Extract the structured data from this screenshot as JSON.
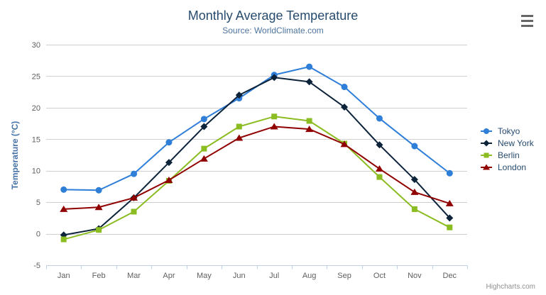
{
  "chart_data": {
    "type": "line",
    "title": "Monthly Average Temperature",
    "subtitle": "Source: WorldClimate.com",
    "categories": [
      "Jan",
      "Feb",
      "Mar",
      "Apr",
      "May",
      "Jun",
      "Jul",
      "Aug",
      "Sep",
      "Oct",
      "Nov",
      "Dec"
    ],
    "xlabel": "",
    "ylabel": "Temperature (°C)",
    "ylim": [
      -5,
      30
    ],
    "yticks": [
      -5,
      0,
      5,
      10,
      15,
      20,
      25,
      30
    ],
    "grid": true,
    "legend_position": "right-middle",
    "series": [
      {
        "name": "Tokyo",
        "color": "#2f7ed8",
        "marker": "circle",
        "values": [
          7.0,
          6.9,
          9.5,
          14.5,
          18.2,
          21.5,
          25.2,
          26.5,
          23.3,
          18.3,
          13.9,
          9.6
        ]
      },
      {
        "name": "New York",
        "color": "#0d233a",
        "marker": "diamond",
        "values": [
          -0.2,
          0.8,
          5.7,
          11.3,
          17.0,
          22.0,
          24.8,
          24.1,
          20.1,
          14.1,
          8.6,
          2.5
        ]
      },
      {
        "name": "Berlin",
        "color": "#8bbc21",
        "marker": "square",
        "values": [
          -0.9,
          0.6,
          3.5,
          8.4,
          13.5,
          17.0,
          18.6,
          17.9,
          14.3,
          9.0,
          3.9,
          1.0
        ]
      },
      {
        "name": "London",
        "color": "#910000",
        "marker": "triangle",
        "values": [
          3.9,
          4.2,
          5.7,
          8.5,
          11.9,
          15.2,
          17.0,
          16.6,
          14.2,
          10.3,
          6.6,
          4.8
        ]
      }
    ]
  },
  "credit": "Highcharts.com",
  "theme": {
    "title_color": "#274b6d",
    "subtitle_color": "#4d759e",
    "axis_title_color": "#4572A7",
    "tick_label_color": "#606060",
    "grid_color": "#D0D0D0",
    "axis_line_color": "#C0D0E0",
    "legend_text_color": "#274b6d",
    "credit_color": "#909090",
    "menu_icon_color": "#666666",
    "background": "#FFFFFF"
  }
}
